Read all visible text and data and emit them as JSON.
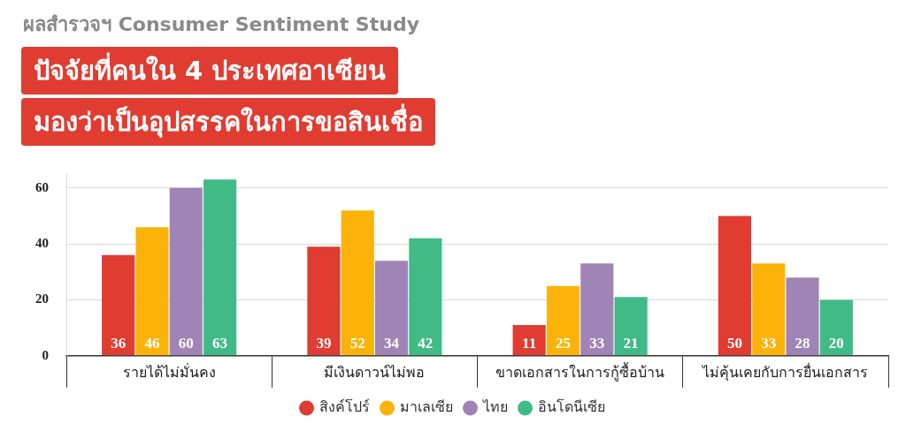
{
  "chart_data": {
    "type": "bar",
    "subtitle": "ผลสำรวจฯ Consumer Sentiment Study",
    "title": "ปัจจัยที่คนใน 4 ประเทศอาเซียน\nมองว่าเป็นอุปสรรคในการขอสินเชื่อ",
    "categories": [
      "รายได้ไม่มั่นคง",
      "มีเงินดาวน์ไม่พอ",
      "ขาดเอกสารในการกู้ซื้อบ้าน",
      "ไม่คุ้นเคยกับการยื่นเอกสาร"
    ],
    "series": [
      {
        "name": "สิงค์โปร์",
        "color": "#e03c31",
        "values": [
          36,
          39,
          11,
          50
        ]
      },
      {
        "name": "มาเลเซีย",
        "color": "#fbb30a",
        "values": [
          46,
          52,
          25,
          33
        ]
      },
      {
        "name": "ไทย",
        "color": "#a084b6",
        "values": [
          60,
          34,
          33,
          28
        ]
      },
      {
        "name": "อินโดนีเซีย",
        "color": "#41bb86",
        "values": [
          63,
          42,
          21,
          20
        ]
      }
    ],
    "ylim": [
      0,
      65
    ],
    "yticks": [
      0,
      20,
      40,
      60
    ],
    "grid": "y",
    "legend": "bottom",
    "data_labels": true
  }
}
